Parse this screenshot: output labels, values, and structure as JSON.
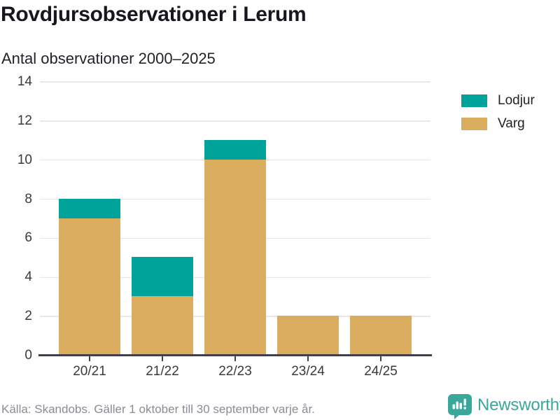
{
  "header": {
    "title": "Rovdjursobservationer i Lerum",
    "subtitle": "Antal observationer 2000–2025"
  },
  "chart_data": {
    "type": "bar",
    "stacked": true,
    "title": "Rovdjursobservationer i Lerum",
    "subtitle": "Antal observationer 2000–2025",
    "categories": [
      "20/21",
      "21/22",
      "22/23",
      "23/24",
      "24/25"
    ],
    "series": [
      {
        "name": "Lodjur",
        "color": "#00A39A",
        "values": [
          1,
          2,
          1,
          0,
          0
        ]
      },
      {
        "name": "Varg",
        "color": "#DAAC5D",
        "values": [
          7,
          3,
          10,
          2,
          2
        ]
      }
    ],
    "totals": [
      8,
      5,
      11,
      2,
      2
    ],
    "xlabel": "",
    "ylabel": "",
    "ylim": [
      0,
      14
    ],
    "yticks": [
      0,
      2,
      4,
      6,
      8,
      10,
      12,
      14
    ],
    "grid": true,
    "legend_position": "top-right"
  },
  "footer": {
    "source": "Källa: Skandobs. Gäller 1 oktober till 30 september varje år.",
    "brand": "Newsworthy"
  },
  "colors": {
    "lodjur": "#00A39A",
    "varg": "#DAAC5D",
    "axis": "#404048",
    "gridline": "#e7e7e7",
    "text": "#39393f",
    "source_text": "#8b8b95",
    "brand_teal": "#3aa79b"
  }
}
